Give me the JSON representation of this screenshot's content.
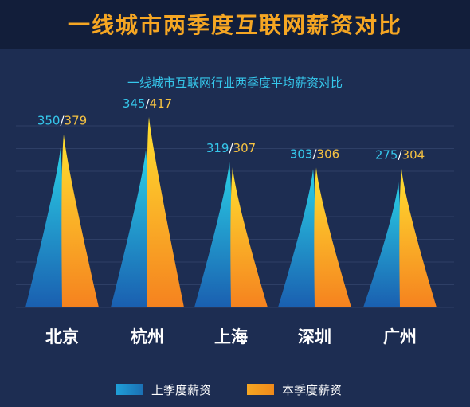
{
  "banner_title": "一线城市两季度互联网薪资对比",
  "colors": {
    "background": "#1d2d52",
    "banner": "#121e3a",
    "title": "#f5a623",
    "subtitle": "#36c8ec",
    "prev_series": "#1f9fd8",
    "curr_series": "#f5a623",
    "prev_label": "#36c8ec",
    "curr_label": "#f5c242",
    "grid": "#2e3f66"
  },
  "chart_data": {
    "type": "bar",
    "title": "一线城市互联网行业两季度平均薪资对比",
    "categories": [
      "北京",
      "杭州",
      "上海",
      "深圳",
      "广州"
    ],
    "series": [
      {
        "name": "上季度薪资",
        "values": [
          350,
          345,
          319,
          303,
          275
        ]
      },
      {
        "name": "本季度薪资",
        "values": [
          379,
          417,
          307,
          306,
          304
        ]
      }
    ],
    "data_label_separator": "/",
    "xlabel": "",
    "ylabel": "",
    "ylim": [
      0,
      450
    ],
    "grid": true,
    "legend": "bottom"
  }
}
